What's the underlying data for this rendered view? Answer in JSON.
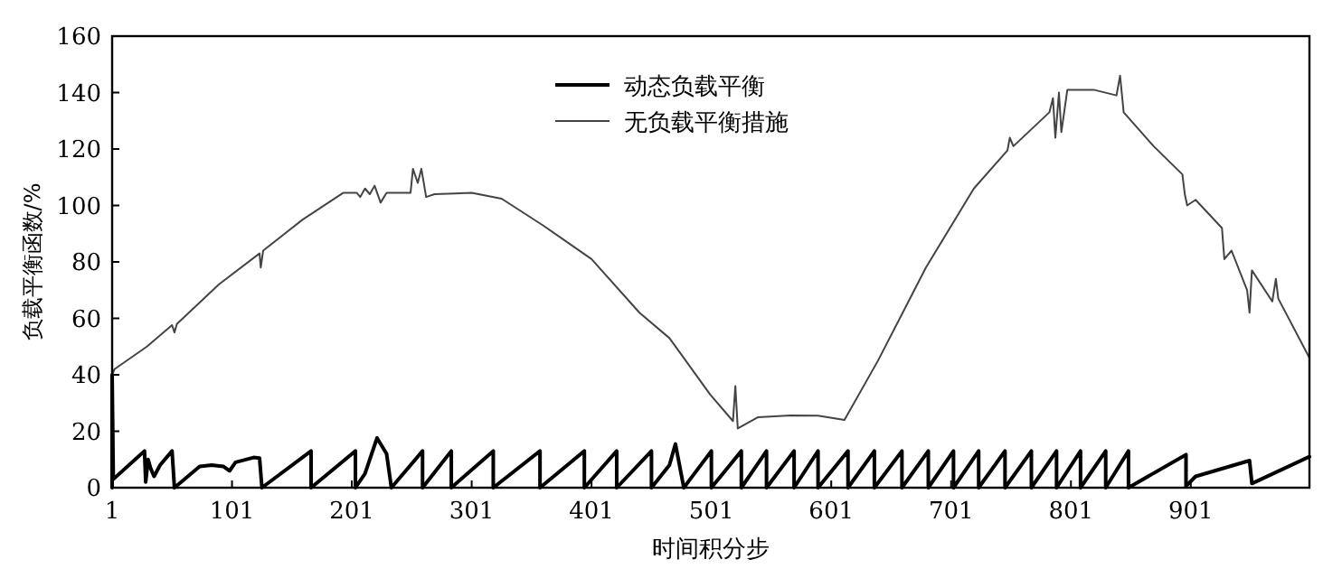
{
  "chart_data": {
    "type": "line",
    "xlabel": "时间积分步",
    "ylabel": "负载平衡函数/%",
    "xlim": [
      1,
      1000
    ],
    "ylim": [
      0,
      160
    ],
    "xticks": [
      1,
      101,
      201,
      301,
      401,
      501,
      601,
      701,
      801,
      901
    ],
    "yticks": [
      0,
      20,
      40,
      60,
      80,
      100,
      120,
      140,
      160
    ],
    "grid": false,
    "legend": "top",
    "marker": "none",
    "line_style": "solid",
    "series": [
      {
        "name": "动态负载平衡",
        "color": "#000000",
        "x": [
          1,
          1,
          2,
          28,
          29,
          31,
          33,
          36,
          41,
          51,
          53,
          74,
          84,
          94,
          99,
          104,
          119,
          124,
          126,
          167,
          167,
          204,
          204,
          212,
          222,
          230,
          234,
          260,
          260,
          284,
          284,
          319,
          319,
          358,
          358,
          395,
          395,
          422,
          422,
          451,
          451,
          466,
          471,
          478,
          501,
          501,
          526,
          526,
          547,
          547,
          570,
          570,
          590,
          590,
          615,
          615,
          637,
          637,
          660,
          660,
          682,
          682,
          703,
          703,
          724,
          724,
          746,
          746,
          768,
          768,
          789,
          789,
          809,
          809,
          830,
          830,
          849,
          849,
          897,
          897,
          905,
          950,
          952,
          1000
        ],
        "values": [
          0,
          40,
          3,
          13,
          2,
          10,
          7,
          4,
          8,
          13,
          0,
          7.5,
          8,
          7.5,
          6,
          9,
          10.7,
          10.5,
          0,
          13,
          0,
          13,
          0,
          5,
          17.6,
          12,
          0,
          13,
          0,
          13,
          0,
          13,
          0,
          13,
          0,
          13,
          0,
          13,
          0,
          13,
          0,
          8,
          15.5,
          0,
          13,
          0,
          13,
          0,
          13,
          0,
          13,
          0,
          13,
          0,
          13,
          0,
          13,
          0,
          13,
          0,
          13,
          0,
          13,
          0,
          13,
          0,
          13,
          0,
          13,
          0,
          13,
          0,
          13,
          0,
          13,
          0,
          13,
          0,
          11.7,
          0.5,
          4,
          9.6,
          1.5,
          11
        ]
      },
      {
        "name": "无负载平衡措施",
        "color": "#444444",
        "x": [
          1,
          3,
          30,
          51,
          53,
          55,
          90,
          124,
          125,
          127,
          160,
          194,
          205,
          208,
          212,
          216,
          220,
          225,
          230,
          250,
          252,
          256,
          259,
          263,
          270,
          301,
          326,
          361,
          401,
          441,
          466,
          500,
          519,
          521,
          523,
          540,
          567,
          590,
          612,
          640,
          680,
          720,
          748,
          750,
          753,
          783,
          786,
          788,
          791,
          793,
          798,
          820,
          839,
          842,
          845,
          870,
          894,
          896,
          898,
          905,
          927,
          929,
          935,
          948,
          950,
          952,
          969,
          972,
          974,
          1000
        ],
        "values": [
          40,
          42,
          50,
          57.6,
          55,
          58,
          72,
          83,
          78,
          84,
          95,
          104.5,
          104.5,
          103,
          106,
          104,
          107,
          101,
          104.5,
          104.5,
          113,
          108,
          113,
          103,
          104,
          104.5,
          102.4,
          92.8,
          81,
          62,
          53,
          33,
          23.6,
          36,
          21,
          25,
          25.6,
          25.5,
          24,
          45,
          78,
          106,
          119.5,
          124,
          121,
          133,
          138,
          124,
          140,
          126,
          141,
          141,
          139,
          146,
          133,
          121,
          111,
          104,
          100,
          102,
          92,
          81,
          84,
          70,
          62,
          77,
          66,
          74,
          67,
          46
        ]
      }
    ]
  }
}
